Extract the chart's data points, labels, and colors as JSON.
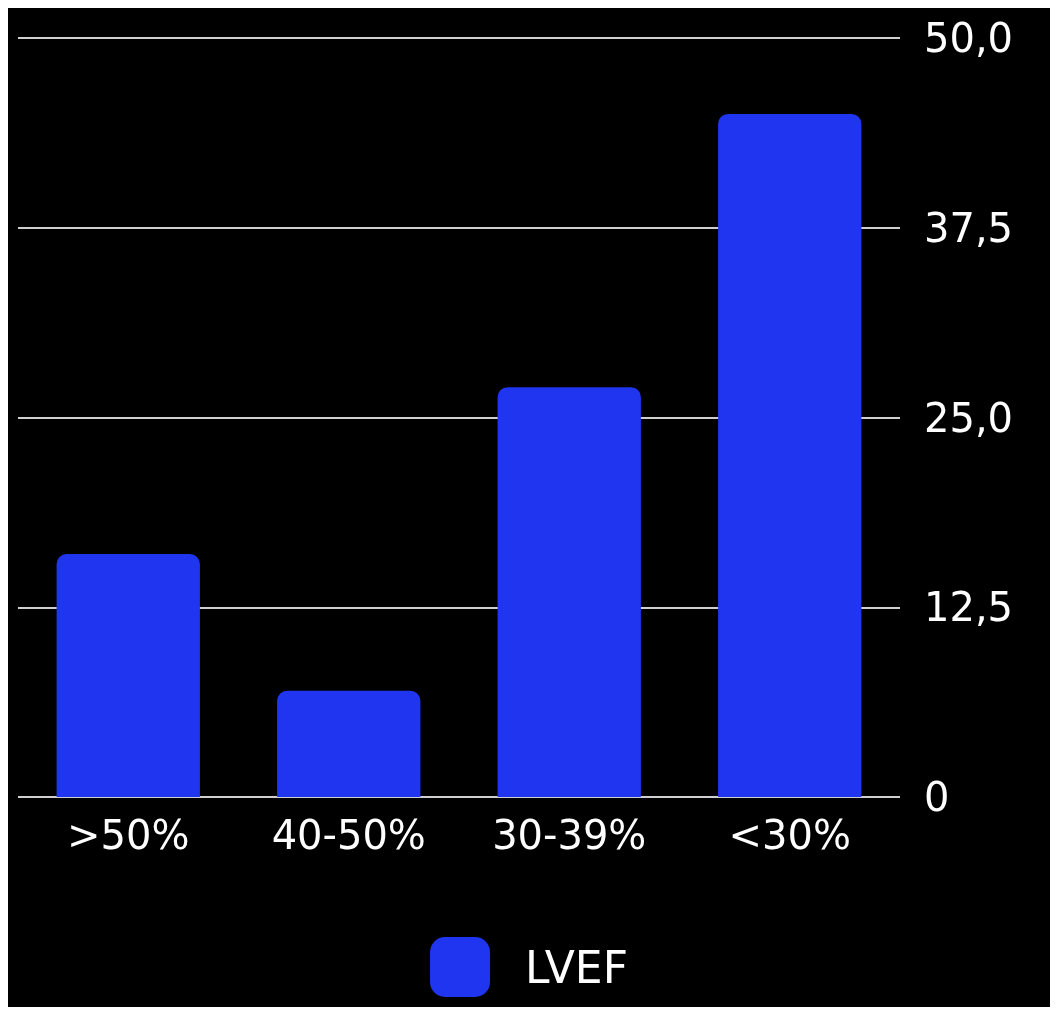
{
  "chart_data": {
    "type": "bar",
    "categories": [
      ">50%",
      "40-50%",
      "30-39%",
      "<30%"
    ],
    "series": [
      {
        "name": "LVEF",
        "color": "#1f35f0",
        "values": [
          16,
          7,
          27,
          45
        ]
      }
    ],
    "ylim": [
      0,
      50
    ],
    "yticks": [
      0,
      {
        "value": 12.5,
        "label": "12,5"
      },
      {
        "value": 25,
        "label": "25,0"
      },
      {
        "value": 37.5,
        "label": "37,5"
      },
      {
        "value": 50,
        "label": "50,0"
      }
    ],
    "grid": "y",
    "legend": "bottom"
  }
}
